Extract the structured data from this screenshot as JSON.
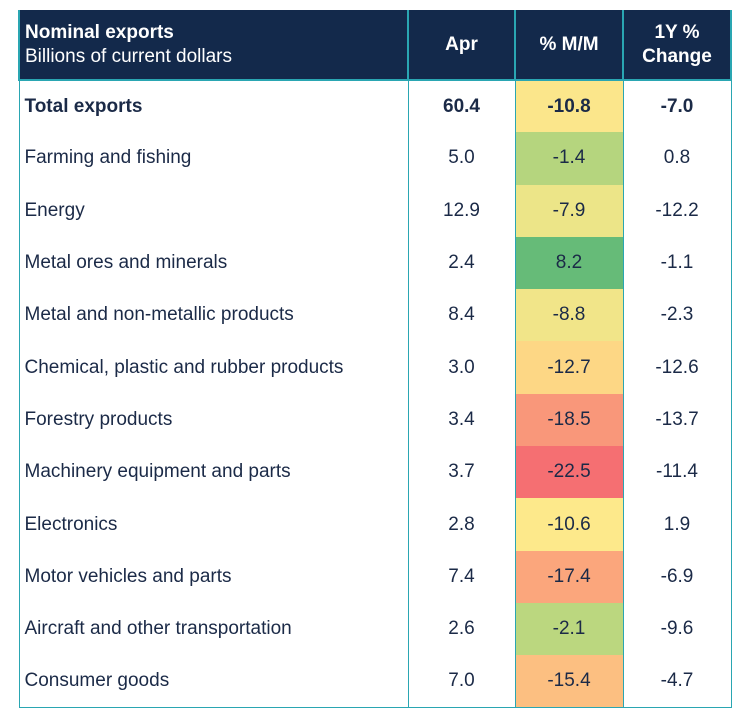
{
  "header": {
    "title": "Nominal exports",
    "subtitle": "Billions of current dollars",
    "col_apr": "Apr",
    "col_mm": "% M/M",
    "col_1y_line1": "1Y %",
    "col_1y_line2": "Change"
  },
  "chart_data": {
    "type": "table",
    "title": "Nominal exports",
    "subtitle": "Billions of current dollars",
    "columns": [
      "Apr",
      "% M/M",
      "1Y % Change"
    ],
    "rows": [
      {
        "label": "Total exports",
        "apr": "60.4",
        "mm": "-10.8",
        "yoy": "-7.0",
        "mm_color": "#fbe68b",
        "bold": true
      },
      {
        "label": "Farming and fishing",
        "apr": "5.0",
        "mm": "-1.4",
        "yoy": "0.8",
        "mm_color": "#b5d57e"
      },
      {
        "label": "Energy",
        "apr": "12.9",
        "mm": "-7.9",
        "yoy": "-12.2",
        "mm_color": "#ece588"
      },
      {
        "label": "Metal ores and minerals",
        "apr": "2.4",
        "mm": "8.2",
        "yoy": "-1.1",
        "mm_color": "#66bb78"
      },
      {
        "label": "Metal and non-metallic products",
        "apr": "8.4",
        "mm": "-8.8",
        "yoy": "-2.3",
        "mm_color": "#f1e589"
      },
      {
        "label": "Chemical, plastic and rubber products",
        "apr": "3.0",
        "mm": "-12.7",
        "yoy": "-12.6",
        "mm_color": "#fdd785"
      },
      {
        "label": "Forestry products",
        "apr": "3.4",
        "mm": "-18.5",
        "yoy": "-13.7",
        "mm_color": "#f9977a"
      },
      {
        "label": "Machinery equipment and parts",
        "apr": "3.7",
        "mm": "-22.5",
        "yoy": "-11.4",
        "mm_color": "#f56f72"
      },
      {
        "label": "Electronics",
        "apr": "2.8",
        "mm": "-10.6",
        "yoy": "1.9",
        "mm_color": "#fde98b"
      },
      {
        "label": "Motor vehicles and parts",
        "apr": "7.4",
        "mm": "-17.4",
        "yoy": "-6.9",
        "mm_color": "#fba67c"
      },
      {
        "label": "Aircraft and other transportation",
        "apr": "2.6",
        "mm": "-2.1",
        "yoy": "-9.6",
        "mm_color": "#bbd77f"
      },
      {
        "label": "Consumer goods",
        "apr": "7.0",
        "mm": "-15.4",
        "yoy": "-4.7",
        "mm_color": "#fcbf81"
      }
    ]
  },
  "colors": {
    "header_bg": "#13294b",
    "header_text": "#ffffff",
    "grid": "#2aa6b2",
    "body_text": "#1b2a47"
  }
}
